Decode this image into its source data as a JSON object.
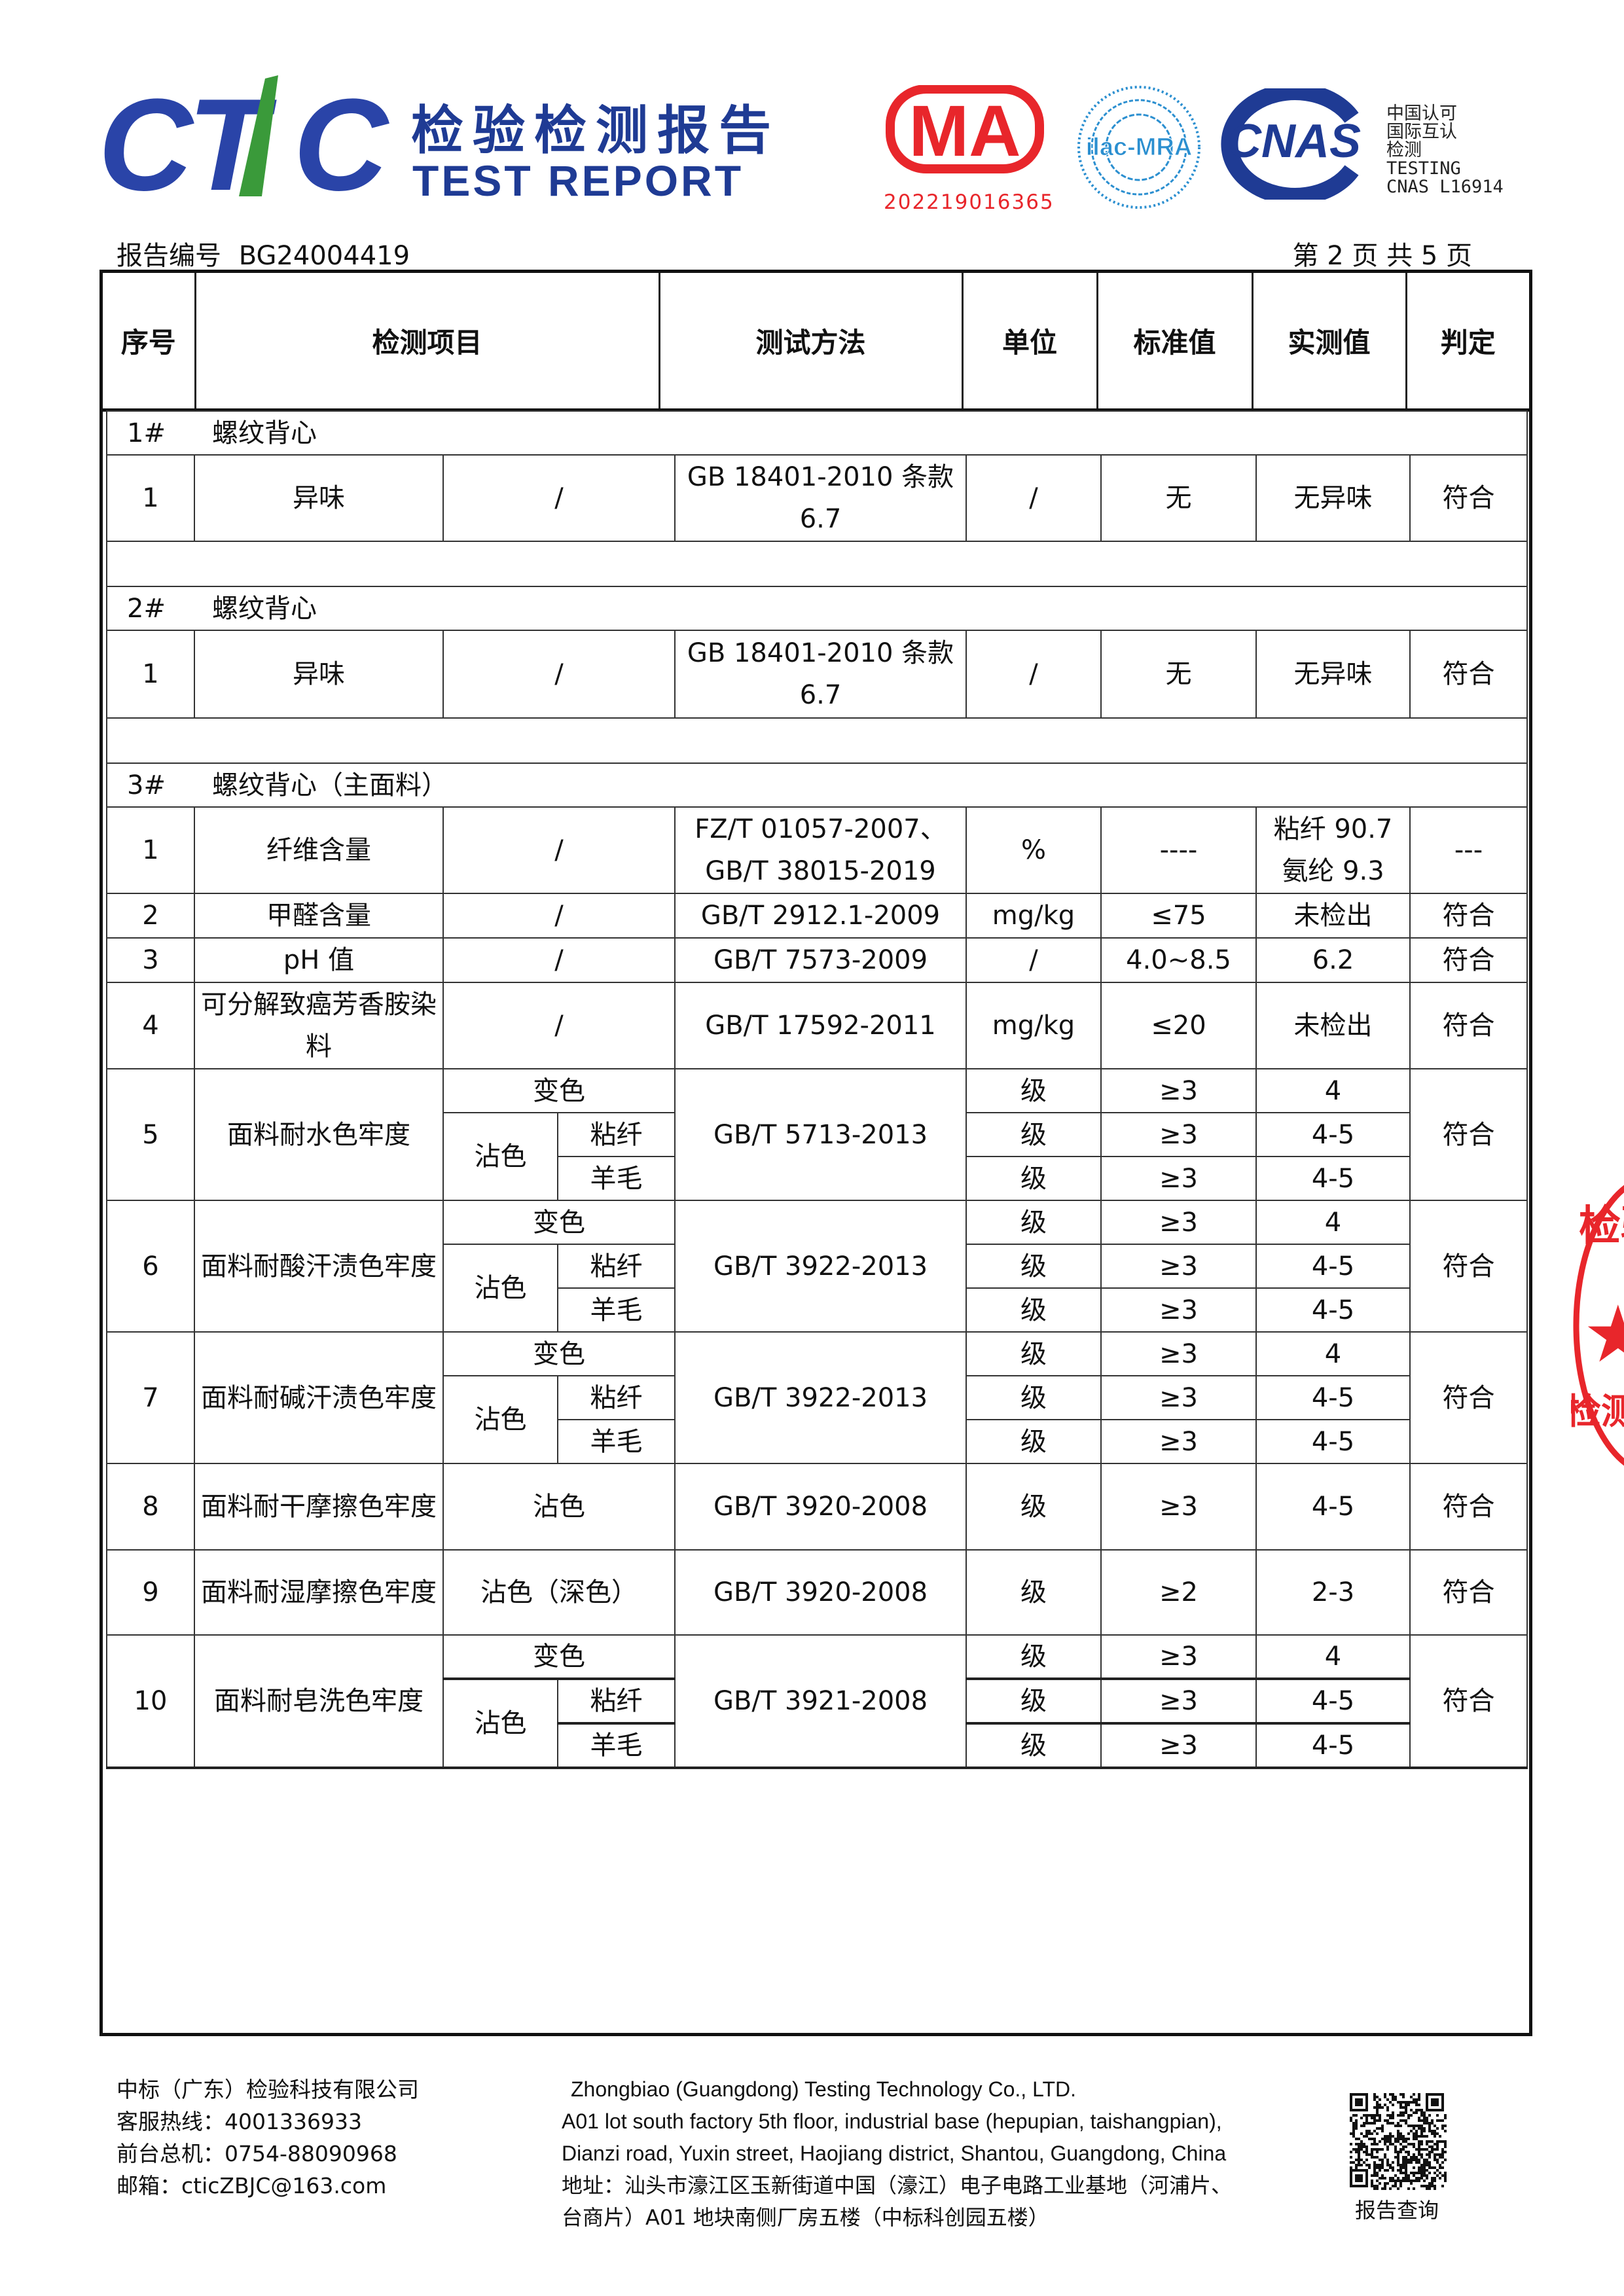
{
  "header": {
    "logo_text": "CTIC",
    "title_cn": "检验检测报告",
    "title_en": "TEST REPORT",
    "cma_text": "MA",
    "cma_number": "202219016365",
    "ilac_text": "ilac-MRA",
    "cnas_text": "CNAS",
    "cnas_lines": [
      "中国认可",
      "国际互认",
      "检测",
      "TESTING",
      "CNAS L16914"
    ],
    "report_no_label": "报告编号",
    "report_no": "BG24004419",
    "page_info": "第 2 页  共 5 页",
    "colors": {
      "brand_blue": "#1f3b94",
      "brand_green": "#3a9a3a",
      "cma_red": "#e8262b"
    }
  },
  "table": {
    "columns": [
      "序号",
      "检测项目",
      "测试方法",
      "单位",
      "标准值",
      "实测值",
      "判定"
    ],
    "rows": [
      {
        "type": "section",
        "no": "1#",
        "name": "螺纹背心"
      },
      {
        "type": "simple",
        "h": 132,
        "no": "1",
        "item": "异味",
        "sub": "/",
        "method": "GB 18401-2010  条款 6.7",
        "unit": "/",
        "std": "无",
        "result": "无异味",
        "verdict": "符合"
      },
      {
        "type": "blank"
      },
      {
        "type": "section",
        "no": "2#",
        "name": "螺纹背心"
      },
      {
        "type": "simple",
        "h": 134,
        "no": "1",
        "item": "异味",
        "sub": "/",
        "method": "GB 18401-2010  条款 6.7",
        "unit": "/",
        "std": "无",
        "result": "无异味",
        "verdict": "符合"
      },
      {
        "type": "blank"
      },
      {
        "type": "section",
        "no": "3#",
        "name": "螺纹背心（主面料）"
      },
      {
        "type": "simple",
        "h": 132,
        "no": "1",
        "item": "纤维含量",
        "sub": "/",
        "method": "FZ/T 01057-2007、GB/T 38015-2019",
        "unit": "%",
        "std": "----",
        "result": "粘纤 90.7 氨纶 9.3",
        "verdict": "---"
      },
      {
        "type": "simple",
        "h": 68,
        "no": "2",
        "item": "甲醛含量",
        "sub": "/",
        "method": "GB/T 2912.1-2009",
        "unit": "mg/kg",
        "std": "≤75",
        "result": "未检出",
        "verdict": "符合"
      },
      {
        "type": "simple",
        "h": 68,
        "no": "3",
        "item": "pH 值",
        "sub": "/",
        "method": "GB/T 7573-2009",
        "unit": "/",
        "std": "4.0~8.5",
        "result": "6.2",
        "verdict": "符合"
      },
      {
        "type": "simple",
        "h": 132,
        "no": "4",
        "item": "可分解致癌芳香胺染料",
        "sub": "/",
        "method": "GB/T 17592-2011",
        "unit": "mg/kg",
        "std": "≤20",
        "result": "未检出",
        "verdict": "符合"
      },
      {
        "type": "fast",
        "no": "5",
        "item": "面料耐水色牢度",
        "method": "GB/T 5713-2013",
        "verdict": "符合",
        "change": "变色",
        "stain": "沾色",
        "fiber1": "粘纤",
        "fiber2": "羊毛",
        "lines": [
          {
            "unit": "级",
            "std": "≥3",
            "result": "4"
          },
          {
            "unit": "级",
            "std": "≥3",
            "result": "4-5"
          },
          {
            "unit": "级",
            "std": "≥3",
            "result": "4-5"
          }
        ]
      },
      {
        "type": "fast",
        "no": "6",
        "item": "面料耐酸汗渍色牢度",
        "method": "GB/T 3922-2013",
        "verdict": "符合",
        "change": "变色",
        "stain": "沾色",
        "fiber1": "粘纤",
        "fiber2": "羊毛",
        "lines": [
          {
            "unit": "级",
            "std": "≥3",
            "result": "4"
          },
          {
            "unit": "级",
            "std": "≥3",
            "result": "4-5"
          },
          {
            "unit": "级",
            "std": "≥3",
            "result": "4-5"
          }
        ]
      },
      {
        "type": "fast",
        "no": "7",
        "item": "面料耐碱汗渍色牢度",
        "method": "GB/T 3922-2013",
        "verdict": "符合",
        "change": "变色",
        "stain": "沾色",
        "fiber1": "粘纤",
        "fiber2": "羊毛",
        "lines": [
          {
            "unit": "级",
            "std": "≥3",
            "result": "4"
          },
          {
            "unit": "级",
            "std": "≥3",
            "result": "4-5"
          },
          {
            "unit": "级",
            "std": "≥3",
            "result": "4-5"
          }
        ]
      },
      {
        "type": "simple",
        "h": 132,
        "no": "8",
        "item": "面料耐干摩擦色牢度",
        "sub": "沾色",
        "method": "GB/T 3920-2008",
        "unit": "级",
        "std": "≥3",
        "result": "4-5",
        "verdict": "符合"
      },
      {
        "type": "simple",
        "h": 130,
        "no": "9",
        "item": "面料耐湿摩擦色牢度",
        "sub": "沾色（深色）",
        "method": "GB/T 3920-2008",
        "unit": "级",
        "std": "≥2",
        "result": "2-3",
        "verdict": "符合"
      },
      {
        "type": "fast",
        "no": "10",
        "item": "面料耐皂洗色牢度",
        "method": "GB/T 3921-2008",
        "verdict": "符合",
        "change": "变色",
        "stain": "沾色",
        "fiber1": "粘纤",
        "fiber2": "羊毛",
        "lines": [
          {
            "unit": "级",
            "std": "≥3",
            "result": "4"
          },
          {
            "unit": "级",
            "std": "≥3",
            "result": "4-5"
          },
          {
            "unit": "级",
            "std": "≥3",
            "result": "4-5"
          }
        ]
      }
    ]
  },
  "footer": {
    "left": [
      "中标（广东）检验科技有限公司",
      "客服热线：4001336933",
      "前台总机：0754-88090968",
      "邮箱：cticZBJC@163.com"
    ],
    "right": [
      "Zhongbiao (Guangdong) Testing Technology Co., LTD.",
      "A01 lot south factory 5th floor, industrial base (hepupian, taishangpian),",
      "Dianzi road, Yuxin street, Haojiang district, Shantou, Guangdong, China",
      "地址：汕头市濠江区玉新街道中国（濠江）电子电路工业基地（河浦片、",
      "台商片）A01  地块南侧厂房五楼（中标科创园五楼）"
    ],
    "qr_label": "报告查询"
  },
  "stamp": {
    "text_top": "检验",
    "text_bottom": "检测"
  }
}
